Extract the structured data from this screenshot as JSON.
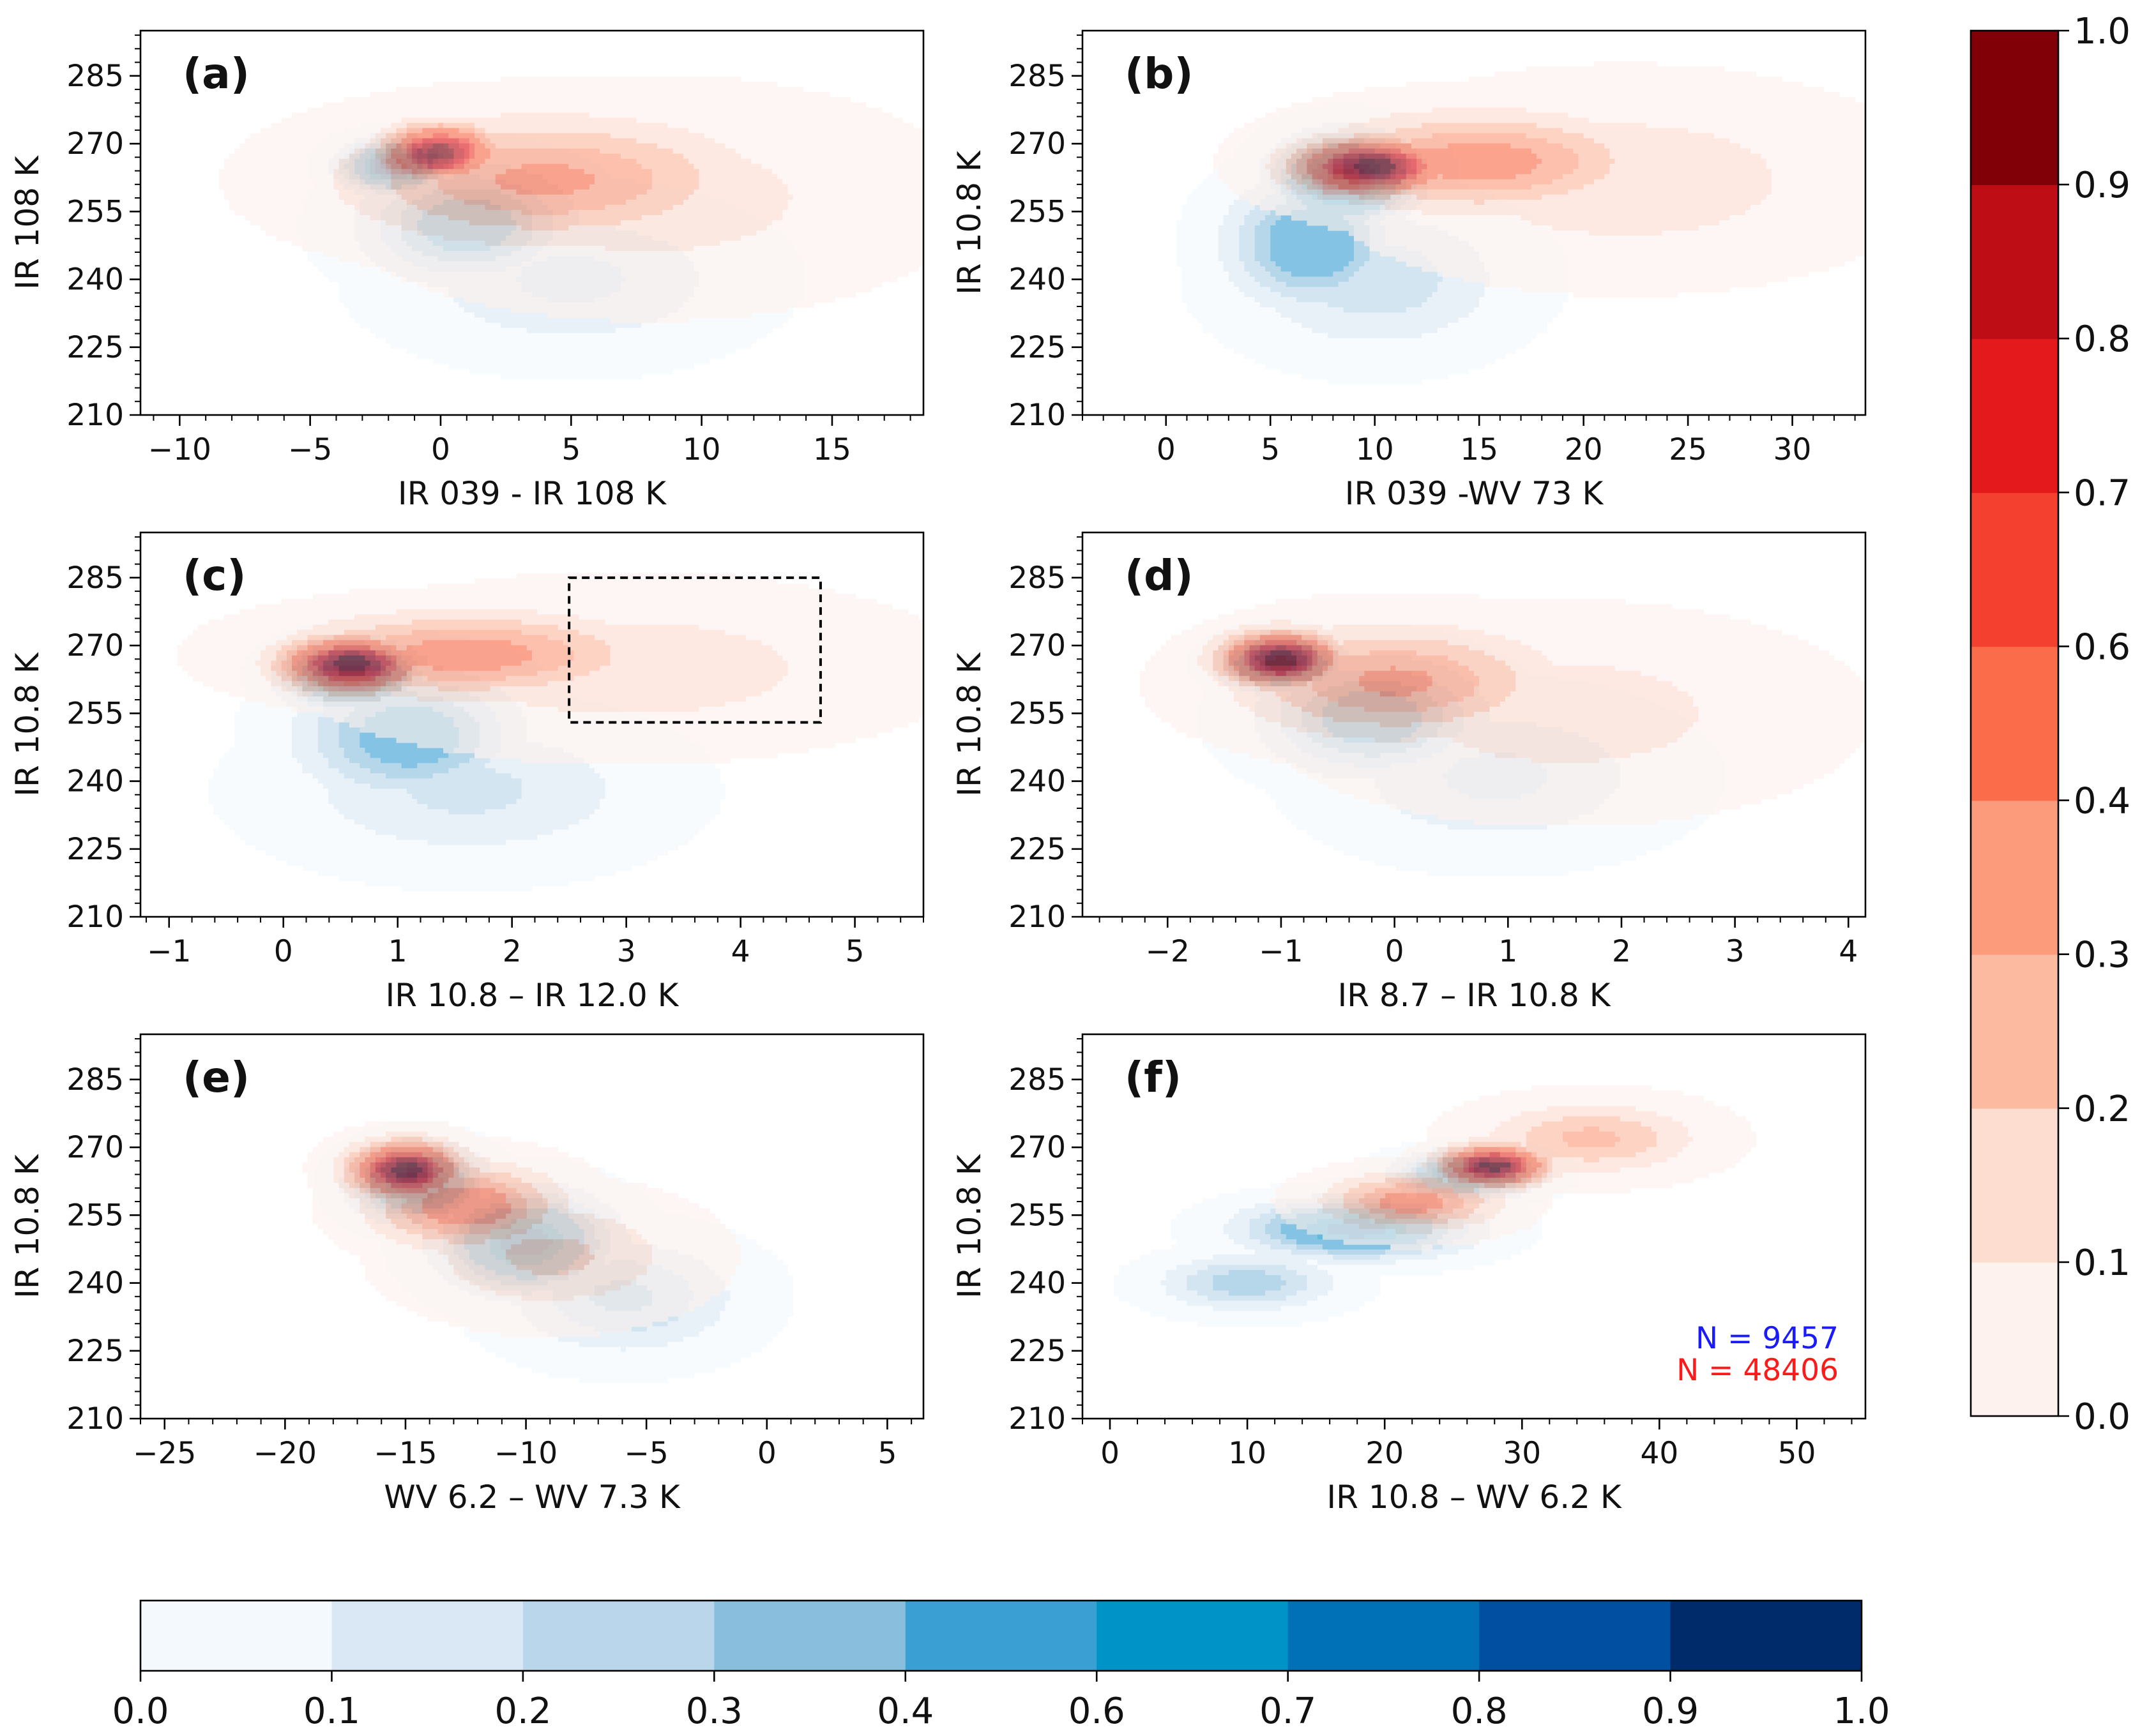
{
  "figure": {
    "description_free": true,
    "panels": [
      {
        "label": "(a)",
        "type": "contour-density",
        "xlabel": "IR 039 - IR 108 K",
        "ylabel": "IR 108 K",
        "xlim": [
          -11.5,
          18.5
        ],
        "ylim": [
          210,
          295
        ],
        "xticks": [
          -10,
          -5,
          0,
          5,
          10,
          15
        ],
        "xtick_labels": [
          "−10",
          "−5",
          "0",
          "5",
          "10",
          "15"
        ],
        "xminor_step": 1,
        "yticks": [
          210,
          225,
          240,
          255,
          270,
          285
        ],
        "ytick_labels": [
          "210",
          "225",
          "240",
          "255",
          "270",
          "285"
        ],
        "yminor_step": 3,
        "red": {
          "center": [
            -2,
            265
          ],
          "peak": 1.0,
          "lobes": [
            {
              "center": [
                0,
                268
              ],
              "sx": 1.4,
              "sy": 4,
              "rot": 0,
              "w": 1.0
            },
            {
              "center": [
                4,
                262
              ],
              "sx": 5,
              "sy": 9,
              "rot": -0.25,
              "w": 0.45
            },
            {
              "center": [
                8,
                258
              ],
              "sx": 6,
              "sy": 13,
              "rot": -0.3,
              "w": 0.18
            }
          ]
        },
        "blue": {
          "peak": 1.0,
          "lobes": [
            {
              "center": [
                -1.8,
                265
              ],
              "sx": 1.2,
              "sy": 3.5,
              "rot": -0.5,
              "w": 1.0
            },
            {
              "center": [
                1,
                252
              ],
              "sx": 2.5,
              "sy": 8,
              "rot": -0.5,
              "w": 0.55
            },
            {
              "center": [
                5,
                240
              ],
              "sx": 4,
              "sy": 10,
              "rot": -0.45,
              "w": 0.25
            }
          ]
        }
      },
      {
        "label": "(b)",
        "type": "contour-density",
        "xlabel": "IR 039 -WV 73 K",
        "ylabel": "IR 10.8 K",
        "xlim": [
          -4,
          33.5
        ],
        "ylim": [
          210,
          295
        ],
        "xticks": [
          0,
          5,
          10,
          15,
          20,
          25,
          30
        ],
        "xtick_labels": [
          "0",
          "5",
          "10",
          "15",
          "20",
          "25",
          "30"
        ],
        "xminor_step": 1,
        "yticks": [
          210,
          225,
          240,
          255,
          270,
          285
        ],
        "ytick_labels": [
          "210",
          "225",
          "240",
          "255",
          "270",
          "285"
        ],
        "yminor_step": 3,
        "red": {
          "peak": 1.0,
          "lobes": [
            {
              "center": [
                10,
                265
              ],
              "sx": 2.5,
              "sy": 4,
              "rot": 0.1,
              "w": 1.0
            },
            {
              "center": [
                15,
                266
              ],
              "sx": 5,
              "sy": 7,
              "rot": 0.15,
              "w": 0.5
            },
            {
              "center": [
                22,
                262
              ],
              "sx": 7,
              "sy": 12,
              "rot": 0.2,
              "w": 0.2
            }
          ]
        },
        "blue": {
          "peak": 1.0,
          "lobes": [
            {
              "center": [
                8.5,
                262
              ],
              "sx": 2,
              "sy": 6,
              "rot": 0.3,
              "w": 1.0
            },
            {
              "center": [
                7,
                248
              ],
              "sx": 2.5,
              "sy": 9,
              "rot": 0.2,
              "w": 0.6
            },
            {
              "center": [
                10,
                240
              ],
              "sx": 4,
              "sy": 10,
              "rot": 0.3,
              "w": 0.3
            }
          ]
        }
      },
      {
        "label": "(c)",
        "type": "contour-density",
        "xlabel": "IR 10.8 – IR 12.0 K",
        "ylabel": "IR 10.8 K",
        "xlim": [
          -1.25,
          5.6
        ],
        "ylim": [
          210,
          295
        ],
        "xticks": [
          -1,
          0,
          1,
          2,
          3,
          4,
          5
        ],
        "xtick_labels": [
          "−1",
          "0",
          "1",
          "2",
          "3",
          "4",
          "5"
        ],
        "xminor_step": 0.2,
        "yticks": [
          210,
          225,
          240,
          255,
          270,
          285
        ],
        "ytick_labels": [
          "210",
          "225",
          "240",
          "255",
          "270",
          "285"
        ],
        "yminor_step": 3,
        "dashed_box": {
          "x": [
            2.5,
            4.7
          ],
          "y": [
            253,
            285
          ]
        },
        "red": {
          "peak": 1.0,
          "lobes": [
            {
              "center": [
                0.6,
                266
              ],
              "sx": 0.4,
              "sy": 4,
              "rot": 0,
              "w": 1.0
            },
            {
              "center": [
                1.6,
                268
              ],
              "sx": 1.0,
              "sy": 6,
              "rot": 0,
              "w": 0.5
            },
            {
              "center": [
                3.0,
                265
              ],
              "sx": 1.4,
              "sy": 10,
              "rot": 0,
              "w": 0.2
            }
          ]
        },
        "blue": {
          "peak": 1.0,
          "lobes": [
            {
              "center": [
                0.6,
                263
              ],
              "sx": 0.35,
              "sy": 4.5,
              "rot": 0,
              "w": 1.0
            },
            {
              "center": [
                1.1,
                250
              ],
              "sx": 0.6,
              "sy": 9,
              "rot": 0.1,
              "w": 0.55
            },
            {
              "center": [
                1.6,
                238
              ],
              "sx": 1.0,
              "sy": 10,
              "rot": 0.1,
              "w": 0.25
            }
          ]
        }
      },
      {
        "label": "(d)",
        "type": "contour-density",
        "xlabel": "IR 8.7 – IR 10.8 K",
        "ylabel": "IR 10.8 K",
        "xlim": [
          -2.75,
          4.15
        ],
        "ylim": [
          210,
          295
        ],
        "xticks": [
          -2,
          -1,
          0,
          1,
          2,
          3,
          4
        ],
        "xtick_labels": [
          "−2",
          "−1",
          "0",
          "1",
          "2",
          "3",
          "4"
        ],
        "xminor_step": 0.2,
        "yticks": [
          210,
          225,
          240,
          255,
          270,
          285
        ],
        "ytick_labels": [
          "210",
          "225",
          "240",
          "255",
          "270",
          "285"
        ],
        "yminor_step": 3,
        "red": {
          "peak": 1.0,
          "lobes": [
            {
              "center": [
                -1.0,
                267
              ],
              "sx": 0.35,
              "sy": 4,
              "rot": -0.3,
              "w": 1.0
            },
            {
              "center": [
                0.0,
                262
              ],
              "sx": 0.9,
              "sy": 8,
              "rot": -0.3,
              "w": 0.45
            },
            {
              "center": [
                1.5,
                255
              ],
              "sx": 1.3,
              "sy": 12,
              "rot": -0.3,
              "w": 0.18
            }
          ]
        },
        "blue": {
          "peak": 1.0,
          "lobes": [
            {
              "center": [
                -1.0,
                266
              ],
              "sx": 0.3,
              "sy": 3.5,
              "rot": -0.5,
              "w": 1.0
            },
            {
              "center": [
                -0.2,
                254
              ],
              "sx": 0.6,
              "sy": 8,
              "rot": -0.5,
              "w": 0.55
            },
            {
              "center": [
                0.9,
                241
              ],
              "sx": 0.9,
              "sy": 10,
              "rot": -0.5,
              "w": 0.25
            }
          ]
        }
      },
      {
        "label": "(e)",
        "type": "contour-density",
        "xlabel": "WV 6.2 – WV 7.3 K",
        "ylabel": "IR 10.8 K",
        "xlim": [
          -26,
          6.5
        ],
        "ylim": [
          210,
          295
        ],
        "xticks": [
          -25,
          -20,
          -15,
          -10,
          -5,
          0,
          5
        ],
        "xtick_labels": [
          "−25",
          "−20",
          "−15",
          "−10",
          "−5",
          "0",
          "5"
        ],
        "xminor_step": 1,
        "yticks": [
          210,
          225,
          240,
          255,
          270,
          285
        ],
        "ytick_labels": [
          "210",
          "225",
          "240",
          "255",
          "270",
          "285"
        ],
        "yminor_step": 3,
        "red": {
          "peak": 1.0,
          "lobes": [
            {
              "center": [
                -15,
                265
              ],
              "sx": 1.5,
              "sy": 4,
              "rot": 0,
              "w": 1.0
            },
            {
              "center": [
                -12.5,
                257
              ],
              "sx": 2.5,
              "sy": 6,
              "rot": -1.0,
              "w": 0.55
            },
            {
              "center": [
                -9,
                246
              ],
              "sx": 3.5,
              "sy": 8,
              "rot": -1.0,
              "w": 0.25
            }
          ]
        },
        "blue": {
          "peak": 1.0,
          "lobes": [
            {
              "center": [
                -14.5,
                262
              ],
              "sx": 1.6,
              "sy": 5,
              "rot": 0,
              "w": 0.9
            },
            {
              "center": [
                -10,
                249
              ],
              "sx": 2.2,
              "sy": 7,
              "rot": -1.0,
              "w": 0.8
            },
            {
              "center": [
                -6,
                237
              ],
              "sx": 3.0,
              "sy": 8,
              "rot": -1.0,
              "w": 0.35
            }
          ]
        }
      },
      {
        "label": "(f)",
        "type": "contour-density",
        "xlabel": "IR 10.8 – WV 6.2 K",
        "ylabel": "IR 10.8 K",
        "xlim": [
          -2,
          55
        ],
        "ylim": [
          210,
          295
        ],
        "xticks": [
          0,
          10,
          20,
          30,
          40,
          50
        ],
        "xtick_labels": [
          "0",
          "10",
          "20",
          "30",
          "40",
          "50"
        ],
        "xminor_step": 2,
        "yticks": [
          210,
          225,
          240,
          255,
          270,
          285
        ],
        "ytick_labels": [
          "210",
          "225",
          "240",
          "255",
          "270",
          "285"
        ],
        "yminor_step": 3,
        "annotations": [
          {
            "text": "N = 9457",
            "color": "#1a1aff"
          },
          {
            "text": "N = 48406",
            "color": "#ff1a1a"
          }
        ],
        "red": {
          "peak": 1.0,
          "lobes": [
            {
              "center": [
                28,
                266
              ],
              "sx": 2.5,
              "sy": 3,
              "rot": 0,
              "w": 1.0
            },
            {
              "center": [
                22,
                258
              ],
              "sx": 4,
              "sy": 4,
              "rot": 0.9,
              "w": 0.5
            },
            {
              "center": [
                35,
                272
              ],
              "sx": 5,
              "sy": 5,
              "rot": 0.9,
              "w": 0.35
            }
          ]
        },
        "blue": {
          "peak": 1.0,
          "lobes": [
            {
              "center": [
                26,
                264
              ],
              "sx": 3,
              "sy": 3,
              "rot": 0.9,
              "w": 0.9
            },
            {
              "center": [
                18,
                252
              ],
              "sx": 5,
              "sy": 4,
              "rot": 0.9,
              "w": 0.8
            },
            {
              "center": [
                10,
                240
              ],
              "sx": 4,
              "sy": 4,
              "rot": 0.9,
              "w": 0.4
            }
          ]
        }
      }
    ],
    "red_colorbar": {
      "ticks": [
        "0.0",
        "0.1",
        "0.2",
        "0.3",
        "0.4",
        "0.6",
        "0.7",
        "0.8",
        "0.9",
        "1.0"
      ],
      "levels": [
        0.0,
        0.1,
        0.2,
        0.3,
        0.4,
        0.6,
        0.7,
        0.8,
        0.9,
        1.0
      ],
      "colors": [
        "#fef2ee",
        "#fcddd0",
        "#fcbba1",
        "#fc9b7b",
        "#fb6c4a",
        "#f4402f",
        "#e3191c",
        "#bf0d15",
        "#810008"
      ]
    },
    "blue_colorbar": {
      "ticks": [
        "0.0",
        "0.1",
        "0.2",
        "0.3",
        "0.4",
        "0.6",
        "0.7",
        "0.8",
        "0.9",
        "1.0"
      ],
      "levels": [
        0.0,
        0.1,
        0.2,
        0.3,
        0.4,
        0.6,
        0.7,
        0.8,
        0.9,
        1.0
      ],
      "colors": [
        "#f4f9fe",
        "#dae8f5",
        "#bad6eb",
        "#89bfdd",
        "#3a9fd2",
        "#0093c7",
        "#0071b7",
        "#004fa0",
        "#002b6b"
      ]
    }
  }
}
